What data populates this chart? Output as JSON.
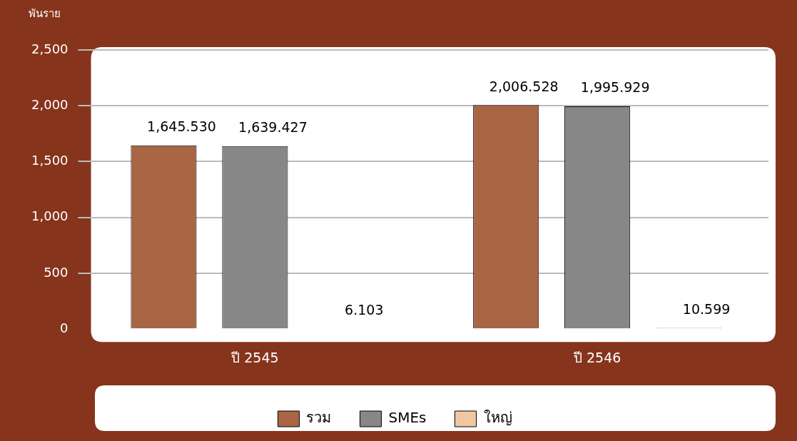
{
  "chart_data": {
    "type": "bar",
    "ylabel": "พันราย",
    "categories": [
      "ปี 2545",
      "ปี 2546"
    ],
    "series": [
      {
        "name": "รวม",
        "color": "#a86644",
        "values": [
          1645.53,
          2006.528
        ],
        "value_labels": [
          "1,645.530",
          "2,006.528"
        ]
      },
      {
        "name": "SMEs",
        "color": "#878787",
        "values": [
          1639.427,
          1995.929
        ],
        "value_labels": [
          "1,639.427",
          "1,995.929"
        ]
      },
      {
        "name": "ใหญ่",
        "color": "#f0c8a0",
        "values": [
          6.103,
          10.599
        ],
        "value_labels": [
          "6.103",
          "10.599"
        ]
      }
    ],
    "ylim": [
      0,
      2500
    ],
    "yticks": [
      {
        "value": 0,
        "label": "0"
      },
      {
        "value": 500,
        "label": "500"
      },
      {
        "value": 1000,
        "label": "1,000"
      },
      {
        "value": 1500,
        "label": "1,500"
      },
      {
        "value": 2000,
        "label": "2,000"
      },
      {
        "value": 2500,
        "label": "2,500"
      }
    ],
    "grid": "y",
    "legend": "bottom"
  }
}
